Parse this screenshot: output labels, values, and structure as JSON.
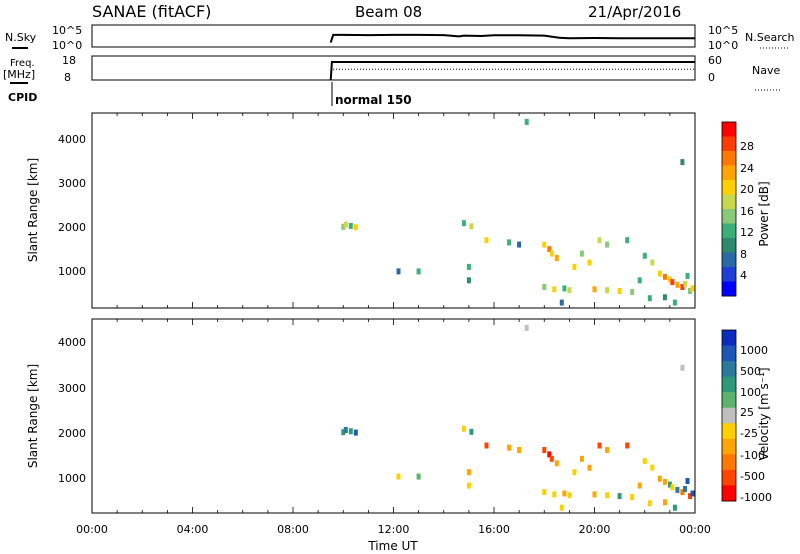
{
  "header": {
    "station": "SANAE (fitACF)",
    "beam": "Beam 08",
    "date": "21/Apr/2016"
  },
  "status_panel": {
    "nsky_label": "N.Sky",
    "nsky_ticks": [
      "10^5",
      "10^0"
    ],
    "nsearch_label": "N.Search",
    "nsearch_ticks": [
      "10^5",
      "10^0"
    ],
    "freq_label": "Freq.",
    "freq_unit": "[MHz]",
    "freq_ticks": [
      "18",
      "8"
    ],
    "nave_label": "Nave",
    "nave_ticks": [
      "60",
      "0"
    ],
    "cpid_label": "CPID",
    "cpid_value": "normal 150"
  },
  "axes": {
    "xlabel": "Time UT",
    "xticks": [
      "00:00",
      "04:00",
      "08:00",
      "12:00",
      "16:00",
      "20:00",
      "00:00"
    ],
    "ylabel": "Slant Range [km]",
    "yticks": [
      "4000",
      "3000",
      "2000",
      "1000"
    ]
  },
  "colorbars": {
    "power": {
      "label": "Power [dB]",
      "ticks": [
        "28",
        "24",
        "20",
        "16",
        "12",
        "8",
        "4"
      ],
      "colors": [
        "#ff0000",
        "#ff3c00",
        "#ff7800",
        "#ffa400",
        "#ffd000",
        "#c8d84c",
        "#88c878",
        "#3cae78",
        "#2e8a6e",
        "#2a6aa4",
        "#1e3ed8",
        "#0000ff"
      ]
    },
    "velocity": {
      "label": "Velocity [m s⁻¹]",
      "ticks": [
        "1000",
        "500",
        "100",
        "25",
        "-25",
        "-100",
        "-500",
        "-1000"
      ],
      "colors": [
        "#0c2cc0",
        "#1e56b8",
        "#2a7a9e",
        "#2e9a7a",
        "#5cb46c",
        "#bfbfbf",
        "#ffd000",
        "#ffa400",
        "#ff7800",
        "#ff4400",
        "#ff0000"
      ]
    }
  },
  "chart_data": [
    {
      "type": "heatmap",
      "title": "Power",
      "x_unit": "hours UT",
      "xlim": [
        0,
        24
      ],
      "ylim": [
        180,
        4550
      ],
      "value_label": "Power [dB]",
      "clim": [
        0,
        30
      ],
      "points": [
        [
          10.0,
          2000,
          14
        ],
        [
          10.1,
          2050,
          16
        ],
        [
          10.3,
          2020,
          12
        ],
        [
          10.5,
          1990,
          18
        ],
        [
          12.2,
          1000,
          6
        ],
        [
          13.0,
          1000,
          10
        ],
        [
          14.8,
          2080,
          12
        ],
        [
          15.1,
          2010,
          16
        ],
        [
          15.7,
          1700,
          20
        ],
        [
          15.0,
          1100,
          10
        ],
        [
          15.0,
          800,
          8
        ],
        [
          16.6,
          1650,
          12
        ],
        [
          17.0,
          1600,
          6
        ],
        [
          17.3,
          4350,
          10
        ],
        [
          18.0,
          1600,
          20
        ],
        [
          18.2,
          1500,
          24
        ],
        [
          18.3,
          1400,
          18
        ],
        [
          18.5,
          1300,
          22
        ],
        [
          18.0,
          650,
          14
        ],
        [
          18.4,
          600,
          20
        ],
        [
          18.8,
          620,
          12
        ],
        [
          19.0,
          580,
          16
        ],
        [
          19.5,
          1400,
          14
        ],
        [
          19.2,
          1100,
          18
        ],
        [
          19.8,
          1200,
          20
        ],
        [
          20.2,
          1700,
          16
        ],
        [
          20.5,
          1600,
          14
        ],
        [
          21.3,
          1700,
          12
        ],
        [
          20.0,
          600,
          22
        ],
        [
          20.5,
          580,
          16
        ],
        [
          21.0,
          560,
          20
        ],
        [
          21.5,
          540,
          14
        ],
        [
          21.8,
          800,
          12
        ],
        [
          22.0,
          1350,
          10
        ],
        [
          22.3,
          1200,
          16
        ],
        [
          22.6,
          950,
          20
        ],
        [
          22.8,
          880,
          24
        ],
        [
          23.0,
          820,
          18
        ],
        [
          23.1,
          760,
          26
        ],
        [
          23.3,
          700,
          22
        ],
        [
          23.5,
          650,
          28
        ],
        [
          23.6,
          720,
          16
        ],
        [
          23.7,
          900,
          12
        ],
        [
          23.5,
          3450,
          8
        ],
        [
          23.8,
          560,
          14
        ],
        [
          23.9,
          620,
          20
        ],
        [
          22.2,
          400,
          10
        ],
        [
          22.8,
          420,
          8
        ],
        [
          18.7,
          300,
          6
        ],
        [
          23.2,
          300,
          12
        ]
      ]
    },
    {
      "type": "heatmap",
      "title": "Velocity",
      "x_unit": "hours UT",
      "xlim": [
        0,
        24
      ],
      "ylim": [
        180,
        4550
      ],
      "value_label": "Velocity [m s-1]",
      "clim": [
        -1000,
        1000
      ],
      "points": [
        [
          10.0,
          2000,
          200
        ],
        [
          10.1,
          2050,
          500
        ],
        [
          10.3,
          2020,
          100
        ],
        [
          10.5,
          1990,
          700
        ],
        [
          12.2,
          1000,
          -30
        ],
        [
          13.0,
          1000,
          50
        ],
        [
          14.8,
          2080,
          -60
        ],
        [
          15.1,
          2010,
          150
        ],
        [
          15.7,
          1700,
          -700
        ],
        [
          15.0,
          1100,
          -150
        ],
        [
          15.0,
          800,
          -80
        ],
        [
          16.6,
          1650,
          -120
        ],
        [
          17.0,
          1600,
          -200
        ],
        [
          17.3,
          4350,
          20
        ],
        [
          18.0,
          1600,
          -700
        ],
        [
          18.2,
          1500,
          -900
        ],
        [
          18.3,
          1400,
          -600
        ],
        [
          18.5,
          1300,
          -300
        ],
        [
          18.0,
          650,
          -100
        ],
        [
          18.4,
          600,
          -60
        ],
        [
          18.8,
          620,
          -200
        ],
        [
          19.0,
          580,
          -30
        ],
        [
          19.5,
          1400,
          -150
        ],
        [
          19.2,
          1100,
          -80
        ],
        [
          19.8,
          1200,
          -200
        ],
        [
          20.2,
          1700,
          -600
        ],
        [
          20.5,
          1600,
          -300
        ],
        [
          21.3,
          1700,
          -800
        ],
        [
          20.0,
          600,
          -200
        ],
        [
          20.5,
          580,
          -100
        ],
        [
          21.0,
          560,
          150
        ],
        [
          21.5,
          540,
          -80
        ],
        [
          21.8,
          800,
          -150
        ],
        [
          22.0,
          1350,
          -60
        ],
        [
          22.3,
          1200,
          -100
        ],
        [
          22.6,
          950,
          -150
        ],
        [
          22.8,
          880,
          -120
        ],
        [
          23.0,
          820,
          200
        ],
        [
          23.1,
          760,
          -80
        ],
        [
          23.3,
          700,
          500
        ],
        [
          23.5,
          650,
          -400
        ],
        [
          23.6,
          720,
          300
        ],
        [
          23.7,
          900,
          700
        ],
        [
          23.5,
          3450,
          -20
        ],
        [
          23.8,
          560,
          -700
        ],
        [
          23.9,
          620,
          900
        ],
        [
          22.2,
          400,
          -60
        ],
        [
          22.8,
          420,
          -150
        ],
        [
          18.7,
          300,
          -30
        ],
        [
          23.2,
          300,
          100
        ]
      ]
    },
    {
      "type": "line",
      "title": "N.Sky / N.Search",
      "x": [
        9.5,
        9.6,
        10.0,
        11.0,
        12.0,
        13.0,
        14.0,
        14.6,
        14.8,
        15.5,
        16.0,
        17.0,
        18.0,
        18.6,
        19.0,
        20.0,
        21.0,
        22.0,
        23.0,
        24.0
      ],
      "series": [
        {
          "values": [
            0.2,
            0.55,
            0.55,
            0.54,
            0.55,
            0.55,
            0.54,
            0.48,
            0.52,
            0.5,
            0.53,
            0.53,
            0.52,
            0.42,
            0.4,
            0.41,
            0.4,
            0.4,
            0.4,
            0.4
          ]
        }
      ],
      "ylim": [
        0,
        1
      ]
    },
    {
      "type": "line",
      "title": "Freq. / Nave",
      "x": [
        9.5,
        9.55,
        24.0
      ],
      "series": [
        {
          "values": [
            0.0,
            0.75,
            0.75
          ]
        },
        {
          "values": [
            0.0,
            0.45,
            0.45
          ]
        }
      ],
      "ylim": [
        0,
        1
      ]
    }
  ]
}
